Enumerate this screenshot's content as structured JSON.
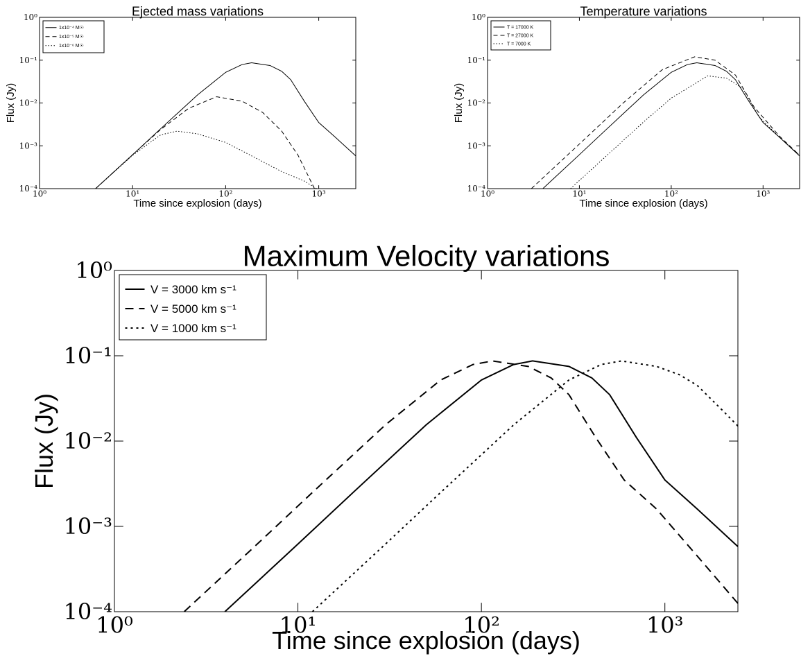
{
  "chart_data": [
    {
      "type": "line",
      "title": "Ejected mass variations",
      "xlabel": "Time since explosion (days)",
      "ylabel": "Flux (Jy)",
      "xscale": "log",
      "yscale": "log",
      "xlim": [
        1,
        2500
      ],
      "ylim": [
        0.0001,
        1
      ],
      "xticks": [
        {
          "value": 1,
          "label": "10⁰"
        },
        {
          "value": 10,
          "label": "10¹"
        },
        {
          "value": 100,
          "label": "10²"
        },
        {
          "value": 1000,
          "label": "10³"
        }
      ],
      "yticks": [
        {
          "value": 0.0001,
          "label": "10⁻⁴"
        },
        {
          "value": 0.001,
          "label": "10⁻³"
        },
        {
          "value": 0.01,
          "label": "10⁻²"
        },
        {
          "value": 0.1,
          "label": "10⁻¹"
        },
        {
          "value": 1,
          "label": "10⁰"
        }
      ],
      "legend": "upper left",
      "series": [
        {
          "name": "1x10⁻⁴ M☉",
          "color": "#000000",
          "linestyle": "solid",
          "x": [
            4,
            10,
            20,
            50,
            100,
            150,
            190,
            300,
            400,
            500,
            700,
            1000,
            1500,
            2500
          ],
          "values": [
            0.0001,
            0.00062,
            0.0025,
            0.0155,
            0.052,
            0.079,
            0.087,
            0.075,
            0.055,
            0.035,
            0.011,
            0.0035,
            0.0016,
            0.00058
          ]
        },
        {
          "name": "1x10⁻⁵ M☉",
          "color": "#000000",
          "linestyle": "dashed",
          "x": [
            4,
            10,
            20,
            40,
            80,
            150,
            250,
            400,
            600,
            900
          ],
          "values": [
            0.0001,
            0.00062,
            0.0024,
            0.0075,
            0.014,
            0.011,
            0.006,
            0.0022,
            0.0006,
            0.0001
          ]
        },
        {
          "name": "1x10⁻⁶ M☉",
          "color": "#000000",
          "linestyle": "dotted",
          "x": [
            4,
            10,
            20,
            30,
            50,
            100,
            200,
            400,
            700,
            950
          ],
          "values": [
            0.0001,
            0.0006,
            0.0018,
            0.0022,
            0.0019,
            0.0012,
            0.00055,
            0.00025,
            0.00015,
            0.0001
          ]
        }
      ]
    },
    {
      "type": "line",
      "title": "Temperature variations",
      "xlabel": "Time since explosion (days)",
      "ylabel": "Flux (Jy)",
      "xscale": "log",
      "yscale": "log",
      "xlim": [
        1,
        2500
      ],
      "ylim": [
        0.0001,
        1
      ],
      "xticks": [
        {
          "value": 1,
          "label": "10⁰"
        },
        {
          "value": 10,
          "label": "10¹"
        },
        {
          "value": 100,
          "label": "10²"
        },
        {
          "value": 1000,
          "label": "10³"
        }
      ],
      "yticks": [
        {
          "value": 0.0001,
          "label": "10⁻⁴"
        },
        {
          "value": 0.001,
          "label": "10⁻³"
        },
        {
          "value": 0.01,
          "label": "10⁻²"
        },
        {
          "value": 0.1,
          "label": "10⁻¹"
        },
        {
          "value": 1,
          "label": "10⁰"
        }
      ],
      "legend": "upper left",
      "series": [
        {
          "name": "T = 17000 K",
          "color": "#000000",
          "linestyle": "solid",
          "x": [
            4,
            10,
            20,
            50,
            100,
            150,
            190,
            300,
            400,
            500,
            700,
            1000,
            1500,
            2500
          ],
          "values": [
            0.0001,
            0.00062,
            0.0025,
            0.0155,
            0.052,
            0.079,
            0.087,
            0.075,
            0.055,
            0.035,
            0.011,
            0.0035,
            0.0016,
            0.00058
          ]
        },
        {
          "name": "T = 27000 K",
          "color": "#000000",
          "linestyle": "dashed",
          "x": [
            3,
            10,
            30,
            80,
            180,
            300,
            500,
            800,
            1500,
            2500
          ],
          "values": [
            0.0001,
            0.0011,
            0.01,
            0.06,
            0.12,
            0.1,
            0.045,
            0.008,
            0.0017,
            0.0006
          ]
        },
        {
          "name": "T = 7000 K",
          "color": "#000000",
          "linestyle": "dotted",
          "x": [
            8,
            20,
            50,
            100,
            250,
            400,
            600,
            900,
            1500,
            2500
          ],
          "values": [
            0.0001,
            0.0006,
            0.0036,
            0.013,
            0.043,
            0.038,
            0.022,
            0.0048,
            0.0016,
            0.0006
          ]
        }
      ]
    },
    {
      "type": "line",
      "title": "Maximum Velocity variations",
      "xlabel": "Time since explosion (days)",
      "ylabel": "Flux (Jy)",
      "xscale": "log",
      "yscale": "log",
      "xlim": [
        1,
        2500
      ],
      "ylim": [
        0.0001,
        1
      ],
      "xticks": [
        {
          "value": 1,
          "label": "10⁰"
        },
        {
          "value": 10,
          "label": "10¹"
        },
        {
          "value": 100,
          "label": "10²"
        },
        {
          "value": 1000,
          "label": "10³"
        }
      ],
      "yticks": [
        {
          "value": 0.0001,
          "label": "10⁻⁴"
        },
        {
          "value": 0.001,
          "label": "10⁻³"
        },
        {
          "value": 0.01,
          "label": "10⁻²"
        },
        {
          "value": 0.1,
          "label": "10⁻¹"
        },
        {
          "value": 1,
          "label": "10⁰"
        }
      ],
      "legend": "upper left",
      "series": [
        {
          "name": "V = 3000 km s⁻¹",
          "color": "#000000",
          "linestyle": "solid",
          "x": [
            4,
            10,
            20,
            50,
            100,
            150,
            190,
            300,
            400,
            500,
            700,
            1000,
            1500,
            2500
          ],
          "values": [
            0.0001,
            0.00062,
            0.0025,
            0.0155,
            0.052,
            0.079,
            0.087,
            0.075,
            0.055,
            0.035,
            0.011,
            0.0035,
            0.0016,
            0.00058
          ]
        },
        {
          "name": "V = 5000 km s⁻¹",
          "color": "#000000",
          "linestyle": "dashed",
          "x": [
            2.4,
            6,
            12,
            30,
            60,
            90,
            115,
            180,
            240,
            300,
            420,
            600,
            900,
            1500,
            2500
          ],
          "values": [
            0.0001,
            0.00062,
            0.0025,
            0.0155,
            0.052,
            0.079,
            0.087,
            0.075,
            0.055,
            0.035,
            0.011,
            0.0035,
            0.0016,
            0.00045,
            0.000125
          ]
        },
        {
          "name": "V = 1000 km s⁻¹",
          "color": "#000000",
          "linestyle": "dotted",
          "x": [
            12,
            30,
            60,
            150,
            300,
            450,
            580,
            900,
            1200,
            1500,
            2100,
            2500
          ],
          "values": [
            0.0001,
            0.00062,
            0.0025,
            0.0155,
            0.052,
            0.079,
            0.087,
            0.075,
            0.06,
            0.045,
            0.022,
            0.015
          ]
        }
      ]
    }
  ]
}
